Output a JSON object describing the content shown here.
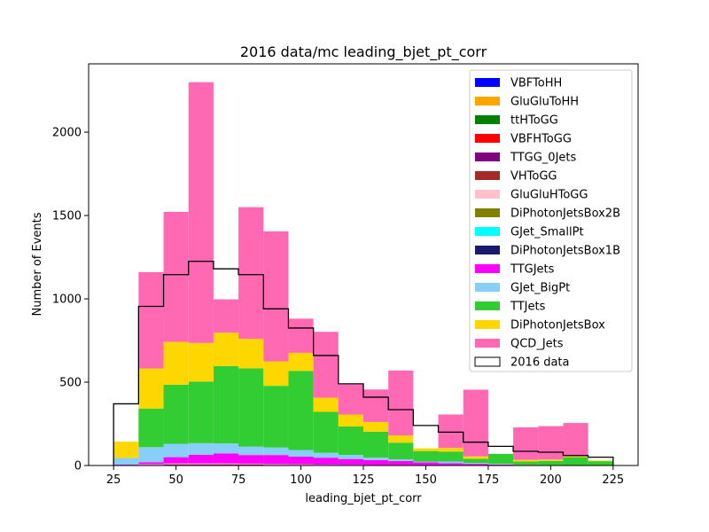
{
  "chart_data": {
    "type": "bar",
    "stacked": true,
    "title": "2016 data/mc leading_bjet_pt_corr",
    "xlabel": "leading_bjet_pt_corr",
    "ylabel": "Number of Events",
    "xlim": [
      15,
      235
    ],
    "ylim": [
      0,
      2410
    ],
    "bin_edges": [
      25,
      35,
      45,
      55,
      65,
      75,
      85,
      95,
      105,
      115,
      125,
      135,
      145,
      155,
      165,
      175,
      185,
      195,
      205,
      215,
      225
    ],
    "x_ticks": [
      25,
      50,
      75,
      100,
      125,
      150,
      175,
      200,
      225
    ],
    "y_ticks": [
      0,
      500,
      1000,
      1500,
      2000
    ],
    "legend_position": "top-right",
    "series": [
      {
        "name": "VBFToHH",
        "color": "#0000ff",
        "values": [
          0,
          0,
          0,
          0,
          0,
          0,
          0,
          0,
          0,
          0,
          0,
          0,
          0,
          0,
          0,
          0,
          0,
          0,
          0,
          0
        ]
      },
      {
        "name": "GluGluToHH",
        "color": "#ffa500",
        "values": [
          0,
          0,
          0,
          0,
          0,
          0,
          0,
          0,
          0,
          0,
          0,
          0,
          0,
          0,
          0,
          0,
          0,
          0,
          0,
          0
        ]
      },
      {
        "name": "ttHToGG",
        "color": "#008000",
        "values": [
          0,
          1,
          2,
          2,
          2,
          2,
          1,
          1,
          1,
          1,
          1,
          1,
          0,
          0,
          0,
          0,
          0,
          0,
          0,
          0
        ]
      },
      {
        "name": "VBFHToGG",
        "color": "#ff0000",
        "values": [
          0,
          0,
          1,
          1,
          1,
          1,
          0,
          0,
          0,
          0,
          0,
          0,
          0,
          0,
          0,
          0,
          0,
          0,
          0,
          0
        ]
      },
      {
        "name": "TTGG_0Jets",
        "color": "#800080",
        "values": [
          0,
          2,
          3,
          3,
          3,
          3,
          2,
          2,
          2,
          1,
          1,
          1,
          0,
          0,
          0,
          0,
          0,
          0,
          0,
          0
        ]
      },
      {
        "name": "VHToGG",
        "color": "#a52a2a",
        "values": [
          0,
          1,
          1,
          1,
          1,
          1,
          1,
          1,
          0,
          0,
          0,
          0,
          0,
          0,
          0,
          0,
          0,
          0,
          0,
          0
        ]
      },
      {
        "name": "GluGluHToGG",
        "color": "#ffc0cb",
        "values": [
          2,
          4,
          5,
          5,
          5,
          4,
          4,
          3,
          2,
          2,
          1,
          1,
          1,
          0,
          0,
          0,
          0,
          0,
          0,
          0
        ]
      },
      {
        "name": "DiPhotonJetsBox2B",
        "color": "#808000",
        "values": [
          0,
          0,
          0,
          0,
          0,
          0,
          0,
          0,
          0,
          0,
          0,
          0,
          0,
          0,
          0,
          0,
          0,
          0,
          0,
          0
        ]
      },
      {
        "name": "GJet_SmallPt",
        "color": "#00ffff",
        "values": [
          0,
          0,
          0,
          0,
          0,
          0,
          0,
          0,
          0,
          0,
          0,
          0,
          0,
          0,
          0,
          0,
          0,
          0,
          0,
          0
        ]
      },
      {
        "name": "DiPhotonJetsBox1B",
        "color": "#191970",
        "values": [
          0,
          0,
          0,
          0,
          0,
          0,
          0,
          0,
          0,
          0,
          0,
          0,
          0,
          0,
          0,
          0,
          0,
          0,
          0,
          0
        ]
      },
      {
        "name": "TTGJets",
        "color": "#ff00ff",
        "values": [
          3,
          12,
          38,
          52,
          60,
          52,
          55,
          46,
          42,
          35,
          30,
          24,
          18,
          14,
          10,
          6,
          4,
          3,
          2,
          1
        ]
      },
      {
        "name": "GJet_BigPt",
        "color": "#87cefa",
        "values": [
          40,
          90,
          80,
          70,
          60,
          50,
          45,
          40,
          30,
          25,
          15,
          10,
          4,
          10,
          5,
          4,
          0,
          0,
          0,
          0
        ]
      },
      {
        "name": "TTJets",
        "color": "#32cd32",
        "values": [
          0,
          232,
          355,
          370,
          465,
          470,
          370,
          475,
          245,
          170,
          155,
          100,
          64,
          60,
          25,
          60,
          20,
          25,
          48,
          25
        ]
      },
      {
        "name": "DiPhotonJetsBox",
        "color": "#ffd700",
        "values": [
          98,
          240,
          257,
          231,
          200,
          177,
          147,
          108,
          85,
          72,
          58,
          43,
          16,
          22,
          15,
          0,
          10,
          8,
          5,
          4
        ]
      },
      {
        "name": "QCD_Jets",
        "color": "#ff69b4",
        "values": [
          0,
          578,
          780,
          1565,
          200,
          790,
          780,
          205,
          395,
          180,
          195,
          390,
          0,
          200,
          400,
          0,
          195,
          200,
          200,
          0
        ]
      }
    ],
    "data": {
      "name": "2016 data",
      "color": "#000000",
      "values": [
        370,
        955,
        1145,
        1225,
        1180,
        1145,
        940,
        825,
        660,
        490,
        410,
        335,
        240,
        200,
        140,
        115,
        85,
        80,
        60,
        50
      ]
    }
  }
}
